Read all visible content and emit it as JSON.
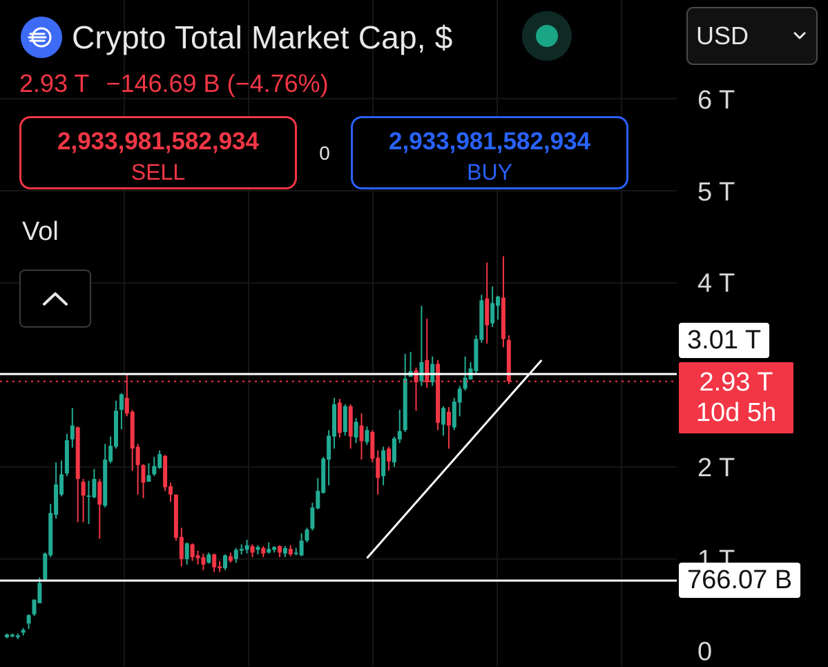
{
  "header": {
    "title": "Crypto Total Market Cap, $"
  },
  "ticker": {
    "last": "2.93 T",
    "change": "−146.69 B",
    "change_pct": "(−4.76%)"
  },
  "trade": {
    "sell_price": "2,933,981,582,934",
    "sell_label": "SELL",
    "buy_price": "2,933,981,582,934",
    "buy_label": "BUY",
    "spread": "0"
  },
  "volume": {
    "label": "Vol"
  },
  "currency": {
    "selected": "USD"
  },
  "price_scale": {
    "ticks": [
      "6 T",
      "5 T",
      "4 T",
      "3 T",
      "2 T",
      "1 T",
      "0"
    ],
    "upper_line_tag": "3.01 T",
    "current_tag_price": "2.93 T",
    "current_tag_countdown": "10d 5h",
    "lower_line_tag": "766.07 B"
  },
  "colors": {
    "up": "#22ab94",
    "down": "#f23645",
    "background": "#000000",
    "buy": "#2962ff",
    "sell": "#f23645",
    "logo": "#3d6bf5"
  },
  "icons": {
    "logo": "market-cap-logo-icon",
    "status": "market-open-dot-icon",
    "collapse": "chevron-up-icon",
    "dropdown": "chevron-down-icon"
  },
  "chart_data": {
    "type": "candlestick",
    "title": "Crypto Total Market Cap, $",
    "ylim": [
      0,
      6.6
    ],
    "y_unit": "T USD",
    "grid": true,
    "candles": [
      [
        0.15,
        0.18,
        0.14,
        0.19
      ],
      [
        0.16,
        0.18,
        0.15,
        0.19
      ],
      [
        0.15,
        0.17,
        0.13,
        0.19
      ],
      [
        0.2,
        0.23,
        0.17,
        0.25
      ],
      [
        0.3,
        0.39,
        0.24,
        0.4
      ],
      [
        0.4,
        0.56,
        0.38,
        0.56
      ],
      [
        0.52,
        0.74,
        0.52,
        0.8
      ],
      [
        0.78,
        1.06,
        0.76,
        1.07
      ],
      [
        1.04,
        1.5,
        1.02,
        1.6
      ],
      [
        1.48,
        1.81,
        1.44,
        2.05
      ],
      [
        1.7,
        1.92,
        1.68,
        2.07
      ],
      [
        1.93,
        2.29,
        1.9,
        2.36
      ],
      [
        2.3,
        2.45,
        2.21,
        2.64
      ],
      [
        2.43,
        1.87,
        1.4,
        2.44
      ],
      [
        1.84,
        1.69,
        1.4,
        1.87
      ],
      [
        1.68,
        1.69,
        1.38,
        1.85
      ],
      [
        1.67,
        1.87,
        1.66,
        1.98
      ],
      [
        1.84,
        1.59,
        1.22,
        1.87
      ],
      [
        1.58,
        2.08,
        1.56,
        2.25
      ],
      [
        2.06,
        2.23,
        2.04,
        2.33
      ],
      [
        2.22,
        2.61,
        2.2,
        2.72
      ],
      [
        2.62,
        2.79,
        2.41,
        2.8
      ],
      [
        2.75,
        2.58,
        2.55,
        3.01
      ],
      [
        2.6,
        2.2,
        1.96,
        2.62
      ],
      [
        2.22,
        2.02,
        1.7,
        2.25
      ],
      [
        2.02,
        1.83,
        1.66,
        2.03
      ],
      [
        1.84,
        1.91,
        1.84,
        2.04
      ],
      [
        1.92,
        2.01,
        1.9,
        2.11
      ],
      [
        1.99,
        2.14,
        1.98,
        2.18
      ],
      [
        2.12,
        1.78,
        1.74,
        2.13
      ],
      [
        1.79,
        1.7,
        1.62,
        1.83
      ],
      [
        1.7,
        1.23,
        1.2,
        1.7
      ],
      [
        1.24,
        1.0,
        0.92,
        1.34
      ],
      [
        1.0,
        1.17,
        0.94,
        1.18
      ],
      [
        1.16,
        1.02,
        0.98,
        1.17
      ],
      [
        1.04,
        1.01,
        0.94,
        1.09
      ],
      [
        1.02,
        0.94,
        0.88,
        1.06
      ],
      [
        0.96,
        1.05,
        0.95,
        1.07
      ],
      [
        1.05,
        0.91,
        0.86,
        1.06
      ],
      [
        0.92,
        0.9,
        0.86,
        0.98
      ],
      [
        0.9,
        1.04,
        0.88,
        1.05
      ],
      [
        1.03,
        0.98,
        0.96,
        1.07
      ],
      [
        1.0,
        1.1,
        0.96,
        1.12
      ],
      [
        1.09,
        1.11,
        1.05,
        1.16
      ],
      [
        1.1,
        1.15,
        1.06,
        1.21
      ],
      [
        1.14,
        1.07,
        1.02,
        1.16
      ],
      [
        1.1,
        1.13,
        1.05,
        1.15
      ],
      [
        1.12,
        1.06,
        1.02,
        1.14
      ],
      [
        1.07,
        1.11,
        1.06,
        1.18
      ],
      [
        1.1,
        1.13,
        1.07,
        1.14
      ],
      [
        1.14,
        1.07,
        1.02,
        1.15
      ],
      [
        1.06,
        1.12,
        1.02,
        1.14
      ],
      [
        1.11,
        1.05,
        1.03,
        1.15
      ],
      [
        1.06,
        1.07,
        1.04,
        1.12
      ],
      [
        1.04,
        1.2,
        1.03,
        1.28
      ],
      [
        1.2,
        1.32,
        1.18,
        1.34
      ],
      [
        1.33,
        1.56,
        1.31,
        1.61
      ],
      [
        1.55,
        1.74,
        1.54,
        1.88
      ],
      [
        1.72,
        2.09,
        1.71,
        2.11
      ],
      [
        2.08,
        2.34,
        1.8,
        2.4
      ],
      [
        2.33,
        2.68,
        2.2,
        2.75
      ],
      [
        2.7,
        2.37,
        2.32,
        2.74
      ],
      [
        2.38,
        2.66,
        2.34,
        2.68
      ],
      [
        2.66,
        2.33,
        2.2,
        2.68
      ],
      [
        2.32,
        2.49,
        2.26,
        2.53
      ],
      [
        2.45,
        2.28,
        2.08,
        2.58
      ],
      [
        2.27,
        2.4,
        2.24,
        2.44
      ],
      [
        2.38,
        2.09,
        2.05,
        2.4
      ],
      [
        2.1,
        1.88,
        1.7,
        2.18
      ],
      [
        1.9,
        2.18,
        1.8,
        2.22
      ],
      [
        2.2,
        2.06,
        1.96,
        2.22
      ],
      [
        2.05,
        2.31,
        2.0,
        2.33
      ],
      [
        2.3,
        2.39,
        2.26,
        2.62
      ],
      [
        2.4,
        2.96,
        2.38,
        3.23
      ],
      [
        2.98,
        3.04,
        2.98,
        3.25
      ],
      [
        3.05,
        2.92,
        2.61,
        3.08
      ],
      [
        2.93,
        3.14,
        2.88,
        3.75
      ],
      [
        3.16,
        2.92,
        2.86,
        3.61
      ],
      [
        2.92,
        3.12,
        2.88,
        3.2
      ],
      [
        3.12,
        2.48,
        2.4,
        3.16
      ],
      [
        2.46,
        2.64,
        2.34,
        2.66
      ],
      [
        2.6,
        2.45,
        2.2,
        2.65
      ],
      [
        2.43,
        2.71,
        2.4,
        2.75
      ],
      [
        2.7,
        2.85,
        2.55,
        2.88
      ],
      [
        2.85,
        2.97,
        2.83,
        3.2
      ],
      [
        2.95,
        3.07,
        2.95,
        3.14
      ],
      [
        3.04,
        3.39,
        3.0,
        3.43
      ],
      [
        3.38,
        3.81,
        3.35,
        3.87
      ],
      [
        3.83,
        3.54,
        3.34,
        4.22
      ],
      [
        3.56,
        3.78,
        3.52,
        3.96
      ],
      [
        3.75,
        3.85,
        3.6,
        3.86
      ],
      [
        3.84,
        3.39,
        3.3,
        4.29
      ],
      [
        3.38,
        2.93,
        2.9,
        3.43
      ]
    ],
    "upper_level": 3.01,
    "lower_level": 0.766,
    "current_price": 2.93,
    "trendline": [
      {
        "index": 66,
        "value": 1.01
      },
      {
        "index": 98,
        "value": 3.16
      }
    ]
  }
}
